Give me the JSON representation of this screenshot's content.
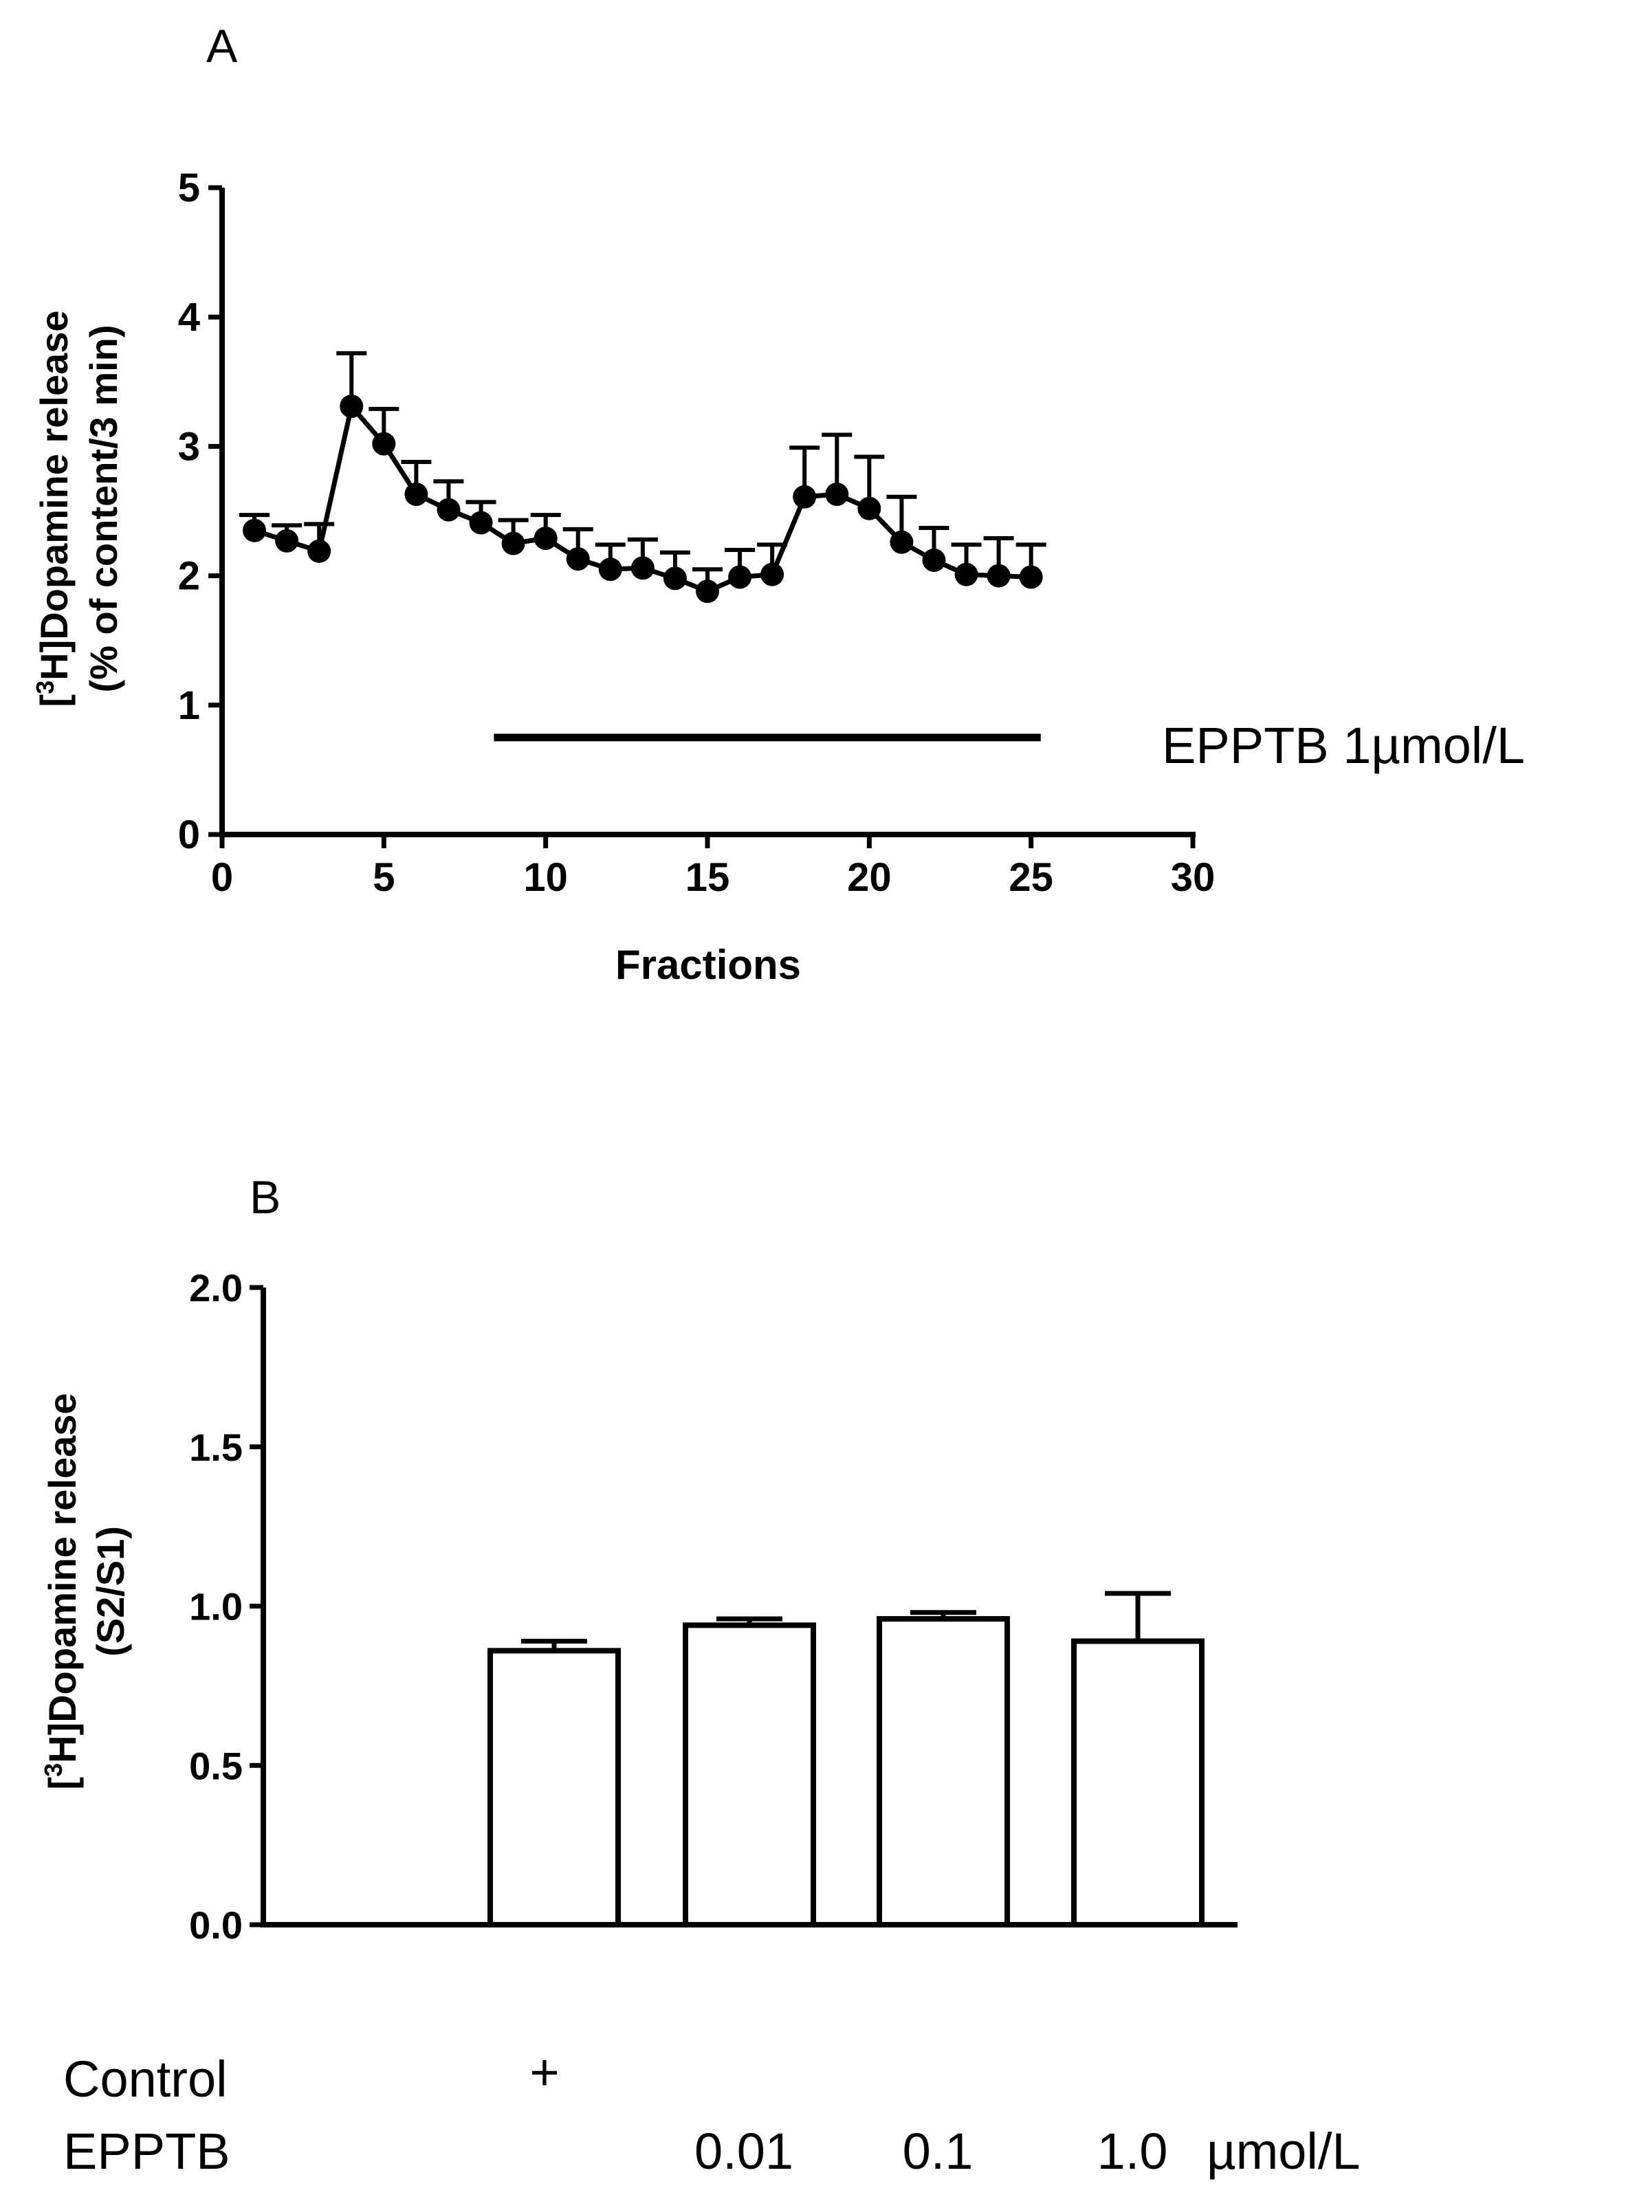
{
  "chart_data": [
    {
      "panel_label": "A",
      "type": "line",
      "title": "",
      "xlabel": "Fractions",
      "ylabel_line1_prefix": "[",
      "ylabel_line1_sup": "3",
      "ylabel_line1_suffix": "H]Dopamine release",
      "ylabel_line2": "(% of content/3 min)",
      "xlim": [
        0,
        30
      ],
      "ylim": [
        0,
        5
      ],
      "xticks": [
        0,
        5,
        10,
        15,
        20,
        25,
        30
      ],
      "yticks": [
        0,
        1,
        2,
        3,
        4,
        5
      ],
      "xtick_labels": [
        "0",
        "5",
        "10",
        "15",
        "20",
        "25",
        "30"
      ],
      "ytick_labels": [
        "0",
        "1",
        "2",
        "3",
        "4",
        "5"
      ],
      "grid": false,
      "series": [
        {
          "name": "[3H]Dopamine release",
          "x": [
            1,
            2,
            3,
            4,
            5,
            6,
            7,
            8,
            9,
            10,
            11,
            12,
            13,
            14,
            15,
            16,
            17,
            18,
            19,
            20,
            21,
            22,
            23,
            24,
            25
          ],
          "y": [
            2.35,
            2.27,
            2.19,
            3.31,
            3.02,
            2.63,
            2.51,
            2.41,
            2.25,
            2.29,
            2.13,
            2.05,
            2.06,
            1.98,
            1.88,
            1.99,
            2.01,
            2.61,
            2.63,
            2.52,
            2.26,
            2.12,
            2.01,
            2.0,
            1.99
          ],
          "err": [
            0.12,
            0.12,
            0.21,
            0.41,
            0.27,
            0.25,
            0.22,
            0.16,
            0.18,
            0.18,
            0.23,
            0.19,
            0.22,
            0.2,
            0.17,
            0.21,
            0.23,
            0.38,
            0.46,
            0.4,
            0.35,
            0.25,
            0.23,
            0.29,
            0.25
          ]
        }
      ],
      "annotation": {
        "label": "EPPTB 1µmol/L",
        "x_start": 8.4,
        "x_end": 25.3,
        "y": 0.75
      }
    },
    {
      "panel_label": "B",
      "type": "bar",
      "title": "",
      "xlabel": "",
      "ylabel_line1_prefix": "[",
      "ylabel_line1_sup": "3",
      "ylabel_line1_suffix": "H]Dopamine release",
      "ylabel_line2": "(S2/S1)",
      "ylim": [
        0,
        2.0
      ],
      "yticks": [
        0,
        0.5,
        1.0,
        1.5,
        2.0
      ],
      "ytick_labels": [
        "0.0",
        "0.5",
        "1.0",
        "1.5",
        "2.0"
      ],
      "grid": false,
      "categories": [
        "Control",
        "EPPTB 0.01",
        "EPPTB 0.1",
        "EPPTB 1.0"
      ],
      "values": [
        0.86,
        0.94,
        0.96,
        0.89
      ],
      "errors": [
        0.03,
        0.02,
        0.02,
        0.15
      ],
      "condition_table": {
        "row1_label": "Control",
        "row1_marks": [
          "+",
          "",
          "",
          ""
        ],
        "row2_label": "EPPTB",
        "row2_marks": [
          "",
          "0.01",
          "0.1",
          "1.0"
        ],
        "unit": "µmol/L"
      }
    }
  ]
}
